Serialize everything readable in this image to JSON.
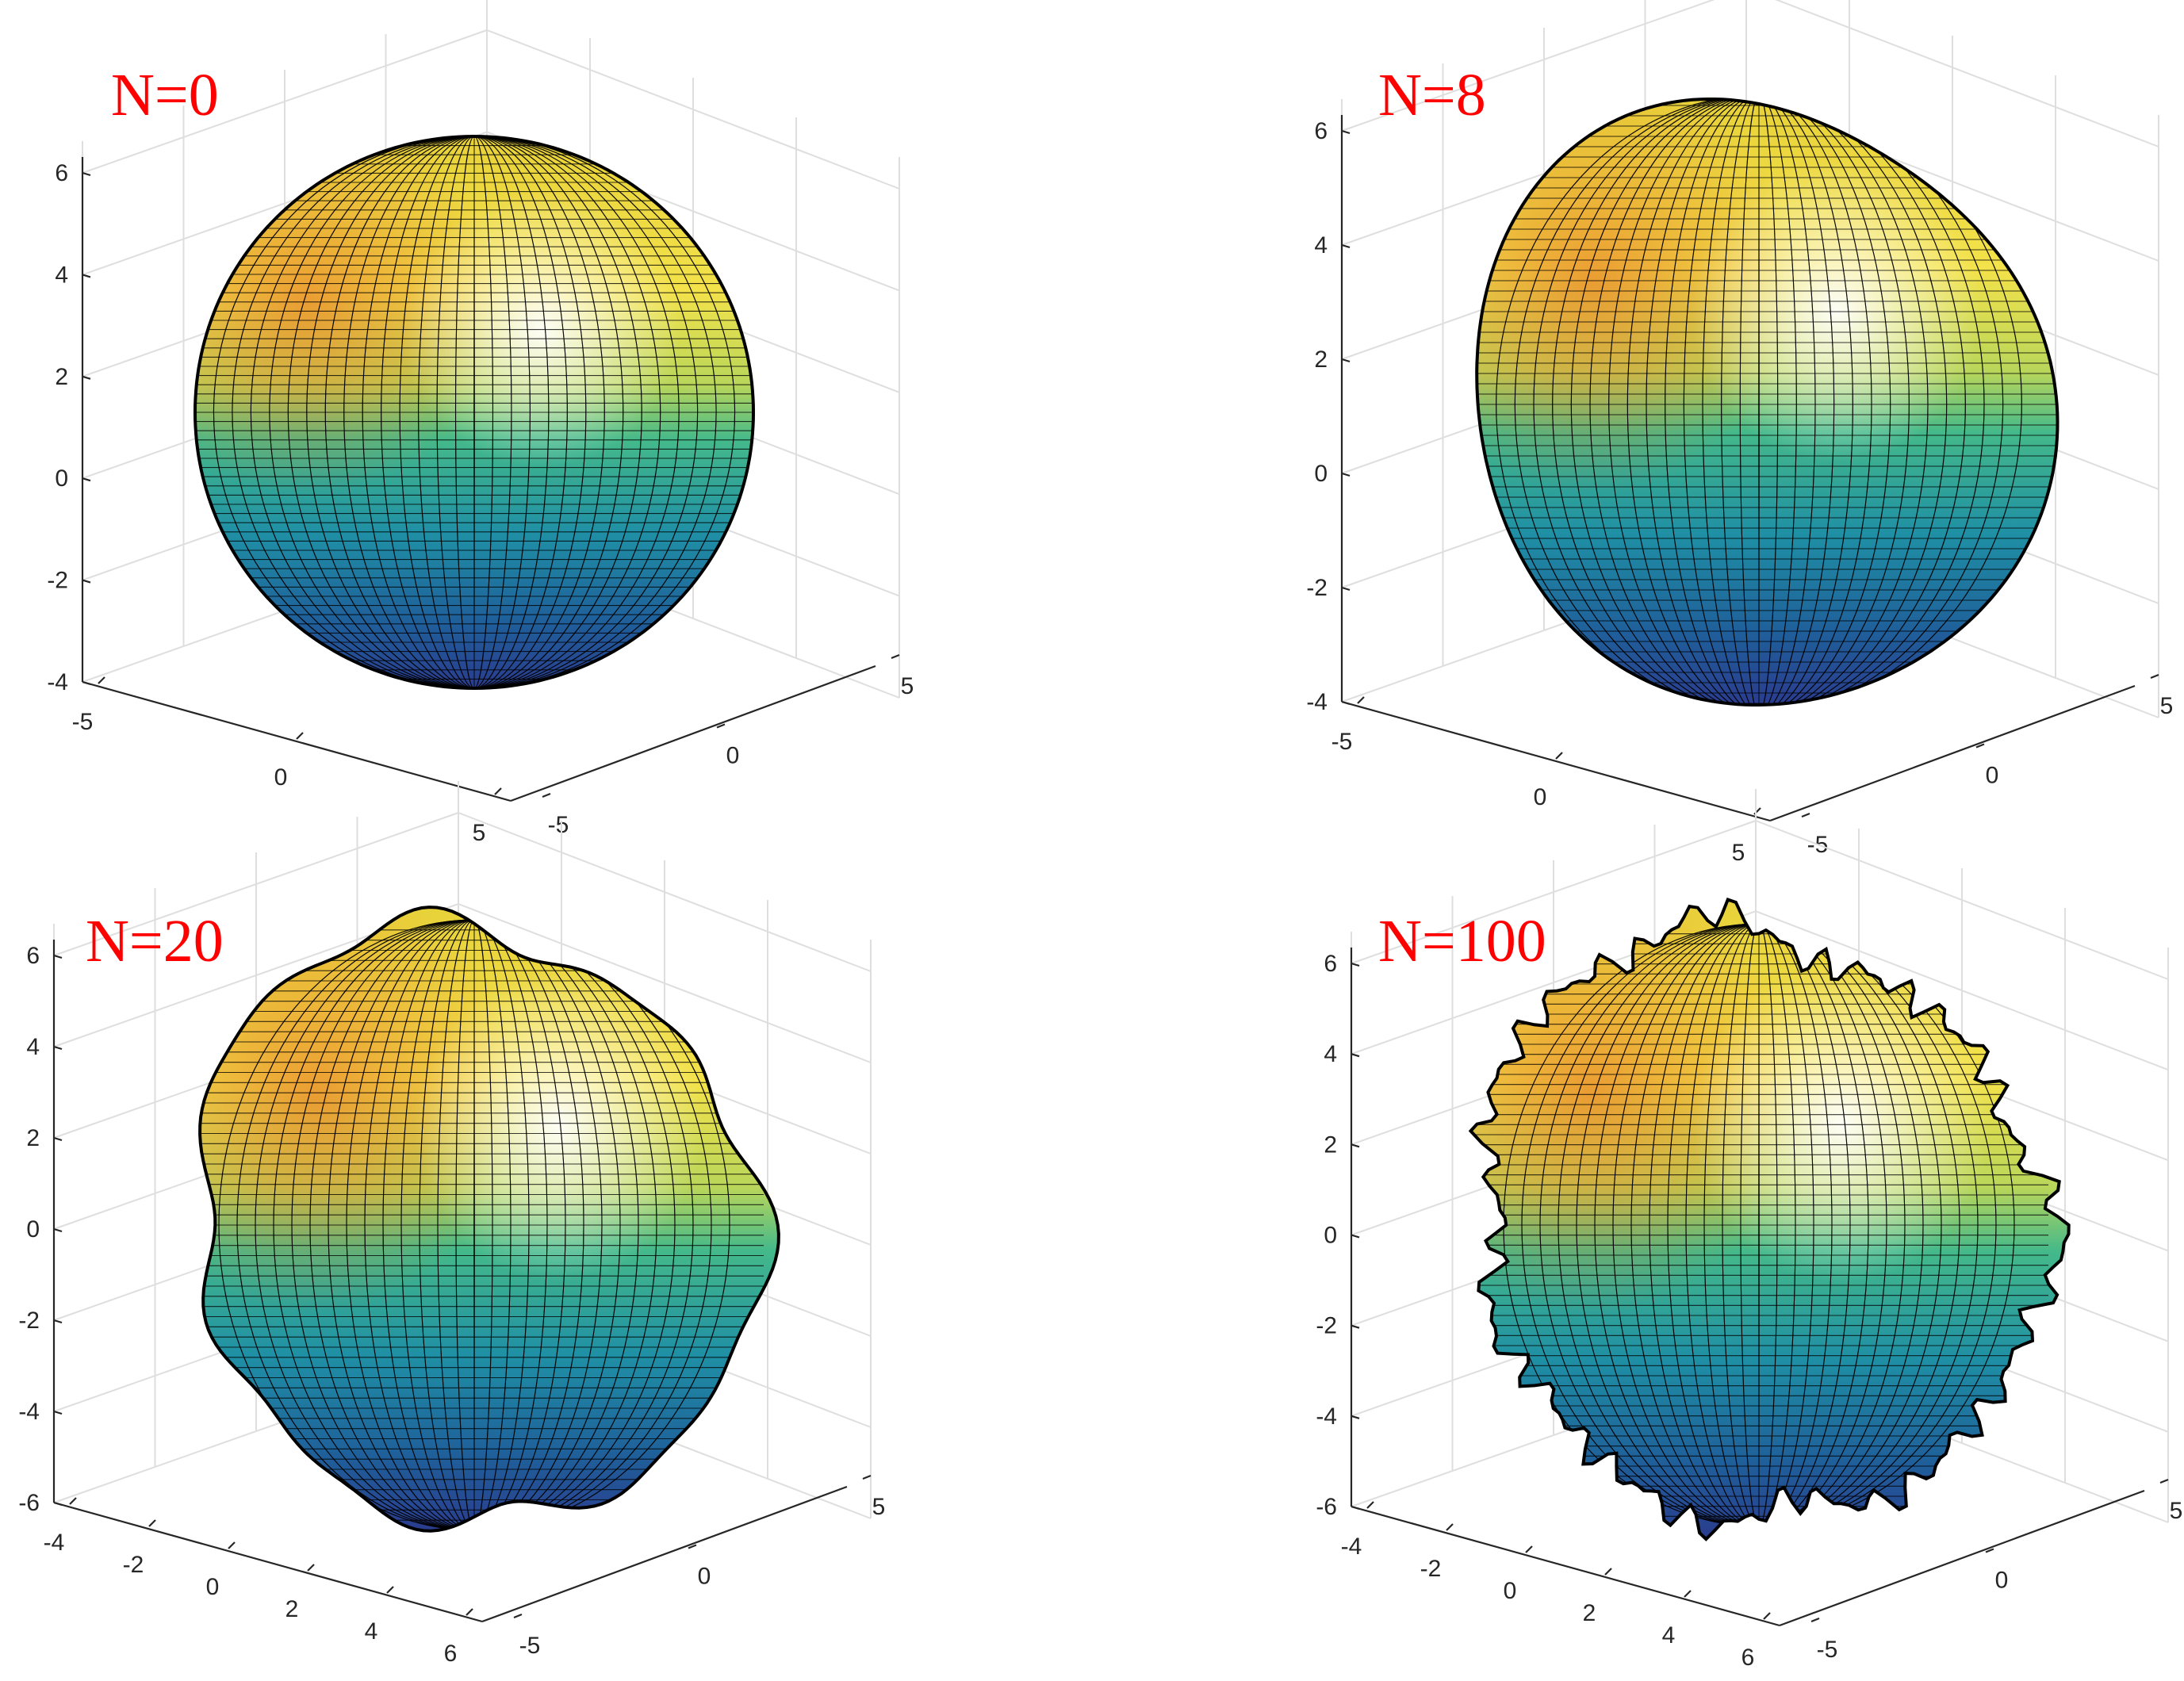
{
  "chart_data": [
    {
      "type": "surface",
      "title": "N=0",
      "harmonics": 0,
      "zticks": [
        "6",
        "4",
        "2",
        "0",
        "-2",
        "-4"
      ],
      "xticks": [
        "-5",
        "0",
        "5"
      ],
      "yticks": [
        "-5",
        "0",
        "5"
      ],
      "zlim": [
        -5,
        6
      ],
      "xlim": [
        -5,
        5
      ],
      "ylim": [
        -5,
        5
      ],
      "grid": true,
      "colormap": "parula"
    },
    {
      "type": "surface",
      "title": "N=8",
      "harmonics": 8,
      "zticks": [
        "6",
        "4",
        "2",
        "0",
        "-2",
        "-4"
      ],
      "xticks": [
        "-5",
        "0",
        "5"
      ],
      "yticks": [
        "-5",
        "0",
        "5"
      ],
      "zlim": [
        -5,
        6.5
      ],
      "xlim": [
        -5,
        5
      ],
      "ylim": [
        -5,
        5
      ],
      "grid": true,
      "colormap": "parula"
    },
    {
      "type": "surface",
      "title": "N=20",
      "harmonics": 20,
      "zticks": [
        "6",
        "4",
        "2",
        "0",
        "-2",
        "-4",
        "-6"
      ],
      "xticks": [
        "-4",
        "-2",
        "0",
        "2",
        "4",
        "6"
      ],
      "yticks": [
        "-5",
        "0",
        "5"
      ],
      "zlim": [
        -5,
        7
      ],
      "xlim": [
        -5,
        6
      ],
      "ylim": [
        -6,
        6
      ],
      "grid": true,
      "colormap": "parula"
    },
    {
      "type": "surface",
      "title": "N=100",
      "harmonics": 100,
      "zticks": [
        "6",
        "4",
        "2",
        "0",
        "-2",
        "-4",
        "-6"
      ],
      "xticks": [
        "-4",
        "-2",
        "0",
        "2",
        "4",
        "6"
      ],
      "yticks": [
        "-5",
        "0",
        "5"
      ],
      "zlim": [
        -5,
        7
      ],
      "xlim": [
        -5,
        6
      ],
      "ylim": [
        -6,
        6
      ],
      "grid": true,
      "colormap": "parula"
    }
  ]
}
